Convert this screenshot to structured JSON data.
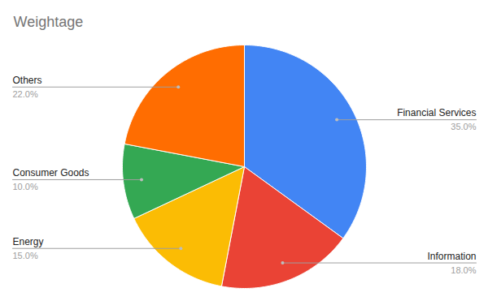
{
  "chart_data": {
    "type": "pie",
    "title": "Weightage",
    "categories": [
      "Financial Services",
      "Information",
      "Energy",
      "Consumer Goods",
      "Others"
    ],
    "values": [
      35,
      18,
      15,
      10,
      22
    ],
    "value_labels": [
      "35.0%",
      "18.0%",
      "15.0%",
      "10.0%",
      "22.0%"
    ],
    "colors": [
      "#4285f4",
      "#ea4335",
      "#fbbc04",
      "#34a853",
      "#ff6d01"
    ],
    "data_labels": true
  }
}
